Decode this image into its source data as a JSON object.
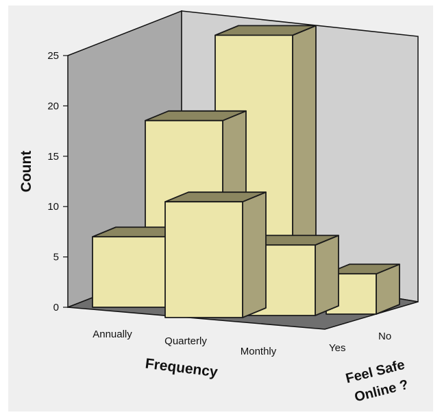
{
  "chart_data": {
    "type": "bar",
    "projection": "3d-grouped",
    "title": "",
    "ylabel": "Count",
    "xlabel": "Frequency",
    "zlabel_lines": [
      "Feel Safe",
      "Online ?"
    ],
    "ylim": [
      0,
      25
    ],
    "yticks": [
      0,
      5,
      10,
      15,
      20,
      25
    ],
    "categories": [
      "Annually",
      "Quarterly",
      "Monthly"
    ],
    "series": [
      {
        "name": "Yes",
        "values": [
          7,
          11.5,
          7
        ]
      },
      {
        "name": "No",
        "values": [
          null,
          15,
          4
        ]
      }
    ],
    "back_row_extra": {
      "category_index": 1,
      "series": "No",
      "value": 23
    },
    "grid": false,
    "colors": {
      "bar_front": "#ece6aa",
      "bar_top": "#8b8660",
      "bar_side": "#a8a27a",
      "bar_outline": "#1a1a1a",
      "wall_left": "#a9a9a9",
      "wall_back": "#d0d0d0",
      "floor": "#6f6f6f",
      "background": "#efefef"
    }
  }
}
